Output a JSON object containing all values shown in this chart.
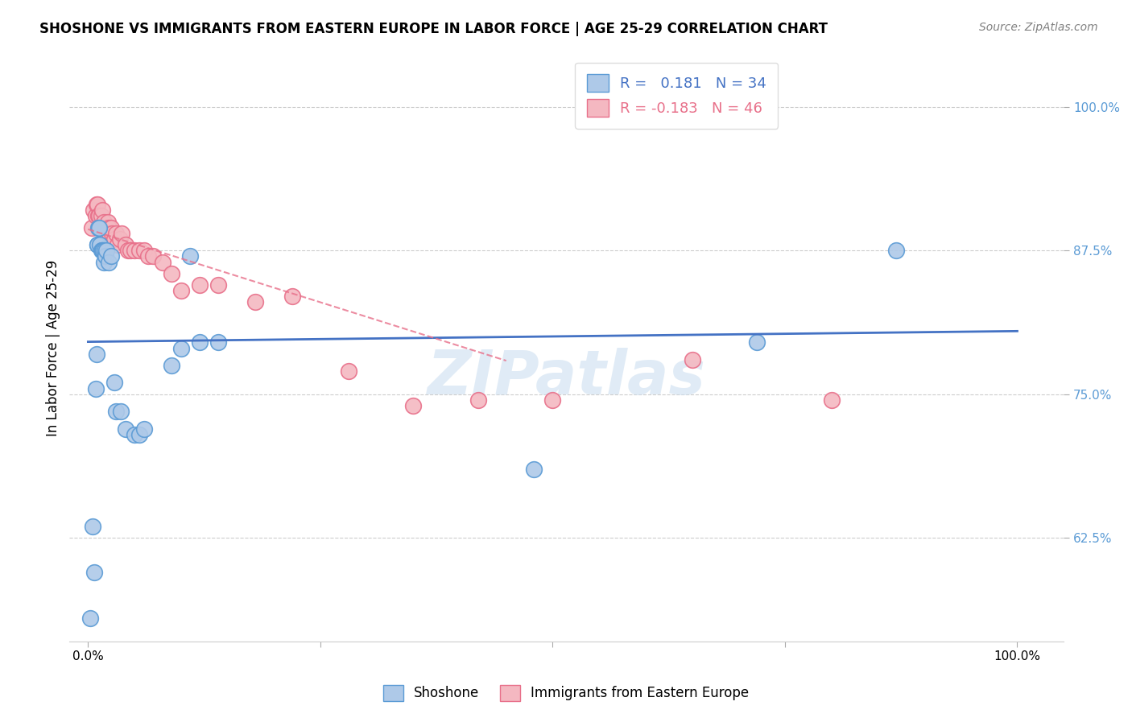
{
  "title": "SHOSHONE VS IMMIGRANTS FROM EASTERN EUROPE IN LABOR FORCE | AGE 25-29 CORRELATION CHART",
  "source": "Source: ZipAtlas.com",
  "ylabel": "In Labor Force | Age 25-29",
  "y_ticks": [
    0.625,
    0.75,
    0.875,
    1.0
  ],
  "y_tick_labels": [
    "62.5%",
    "75.0%",
    "87.5%",
    "100.0%"
  ],
  "xlim": [
    -0.02,
    1.05
  ],
  "ylim": [
    0.535,
    1.045
  ],
  "shoshone_R": 0.181,
  "shoshone_N": 34,
  "immigrant_R": -0.183,
  "immigrant_N": 46,
  "blue_fill": "#aec9e8",
  "blue_edge": "#5b9bd5",
  "pink_fill": "#f4b8c1",
  "pink_edge": "#e8708a",
  "blue_line_color": "#4472c4",
  "pink_line_color": "#e8708a",
  "watermark": "ZIPatlas",
  "shoshone_x": [
    0.002,
    0.005,
    0.007,
    0.008,
    0.009,
    0.01,
    0.01,
    0.011,
    0.012,
    0.013,
    0.014,
    0.015,
    0.016,
    0.017,
    0.018,
    0.019,
    0.02,
    0.022,
    0.025,
    0.028,
    0.03,
    0.035,
    0.04,
    0.05,
    0.055,
    0.06,
    0.09,
    0.1,
    0.11,
    0.12,
    0.14,
    0.48,
    0.72,
    0.87
  ],
  "shoshone_y": [
    0.555,
    0.635,
    0.595,
    0.755,
    0.785,
    0.88,
    0.88,
    0.895,
    0.895,
    0.88,
    0.875,
    0.875,
    0.875,
    0.865,
    0.875,
    0.87,
    0.875,
    0.865,
    0.87,
    0.76,
    0.735,
    0.735,
    0.72,
    0.715,
    0.715,
    0.72,
    0.775,
    0.79,
    0.87,
    0.795,
    0.795,
    0.685,
    0.795,
    0.875
  ],
  "immigrant_x": [
    0.004,
    0.006,
    0.008,
    0.009,
    0.01,
    0.011,
    0.012,
    0.013,
    0.014,
    0.015,
    0.016,
    0.017,
    0.018,
    0.019,
    0.02,
    0.021,
    0.022,
    0.023,
    0.025,
    0.026,
    0.028,
    0.03,
    0.032,
    0.034,
    0.036,
    0.04,
    0.043,
    0.046,
    0.05,
    0.055,
    0.06,
    0.065,
    0.07,
    0.08,
    0.09,
    0.1,
    0.12,
    0.14,
    0.18,
    0.22,
    0.28,
    0.35,
    0.42,
    0.5,
    0.65,
    0.8
  ],
  "immigrant_y": [
    0.895,
    0.91,
    0.905,
    0.915,
    0.915,
    0.905,
    0.905,
    0.895,
    0.905,
    0.91,
    0.895,
    0.9,
    0.895,
    0.895,
    0.895,
    0.9,
    0.895,
    0.89,
    0.895,
    0.89,
    0.885,
    0.89,
    0.88,
    0.885,
    0.89,
    0.88,
    0.875,
    0.875,
    0.875,
    0.875,
    0.875,
    0.87,
    0.87,
    0.865,
    0.855,
    0.84,
    0.845,
    0.845,
    0.83,
    0.835,
    0.77,
    0.74,
    0.745,
    0.745,
    0.78,
    0.745
  ]
}
